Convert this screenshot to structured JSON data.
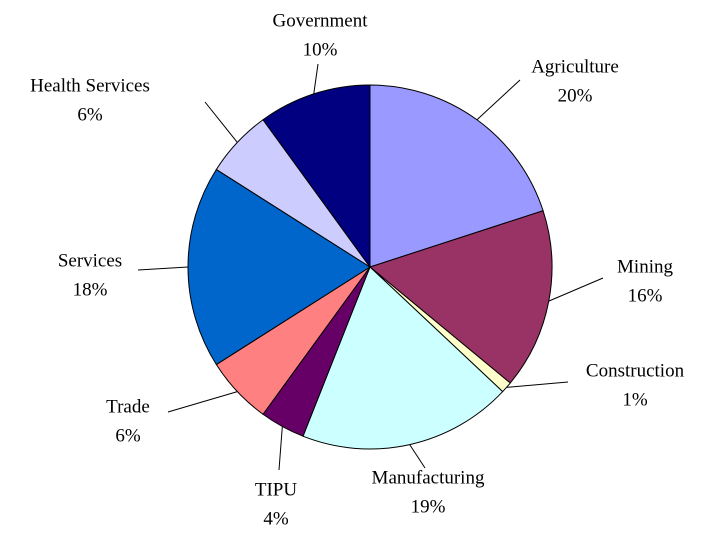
{
  "chart_data": {
    "type": "pie",
    "categories": [
      "Agriculture",
      "Mining",
      "Construction",
      "Manufacturing",
      "TIPU",
      "Trade",
      "Services",
      "Health Services",
      "Government"
    ],
    "values": [
      20,
      16,
      1,
      19,
      4,
      6,
      18,
      6,
      10
    ],
    "value_labels": [
      "20%",
      "16%",
      "1%",
      "19%",
      "4%",
      "6%",
      "18%",
      "6%",
      "10%"
    ],
    "colors": [
      "#9999ff",
      "#993366",
      "#ffffcc",
      "#ccffff",
      "#660066",
      "#ff8080",
      "#0066cc",
      "#ccccff",
      "#000080"
    ]
  }
}
